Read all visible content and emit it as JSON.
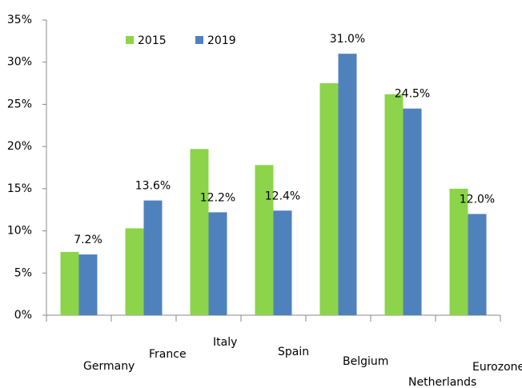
{
  "chart_data": {
    "type": "bar",
    "categories": [
      "Germany",
      "France",
      "Italy",
      "Spain",
      "Belgium",
      "Netherlands",
      "Eurozone"
    ],
    "series": [
      {
        "name": "2015",
        "color": "#8cd44a",
        "values": [
          7.5,
          10.3,
          19.7,
          17.8,
          27.5,
          26.2,
          15.0
        ]
      },
      {
        "name": "2019",
        "color": "#4f81bd",
        "values": [
          7.2,
          13.6,
          12.2,
          12.4,
          31.0,
          24.5,
          12.0
        ],
        "value_labels": [
          "7.2%",
          "13.6%",
          "12.2%",
          "12.4%",
          "31.0%",
          "24.5%",
          "12.0%"
        ]
      }
    ],
    "ylim": [
      0,
      35
    ],
    "yticks": [
      {
        "value": 0,
        "label": "0%"
      },
      {
        "value": 5,
        "label": "5%"
      },
      {
        "value": 10,
        "label": "10%"
      },
      {
        "value": 15,
        "label": "15%"
      },
      {
        "value": 20,
        "label": "20%"
      },
      {
        "value": 25,
        "label": "25%"
      },
      {
        "value": 30,
        "label": "30%"
      },
      {
        "value": 35,
        "label": "35%"
      }
    ],
    "grid": false,
    "legend": "top-left"
  }
}
